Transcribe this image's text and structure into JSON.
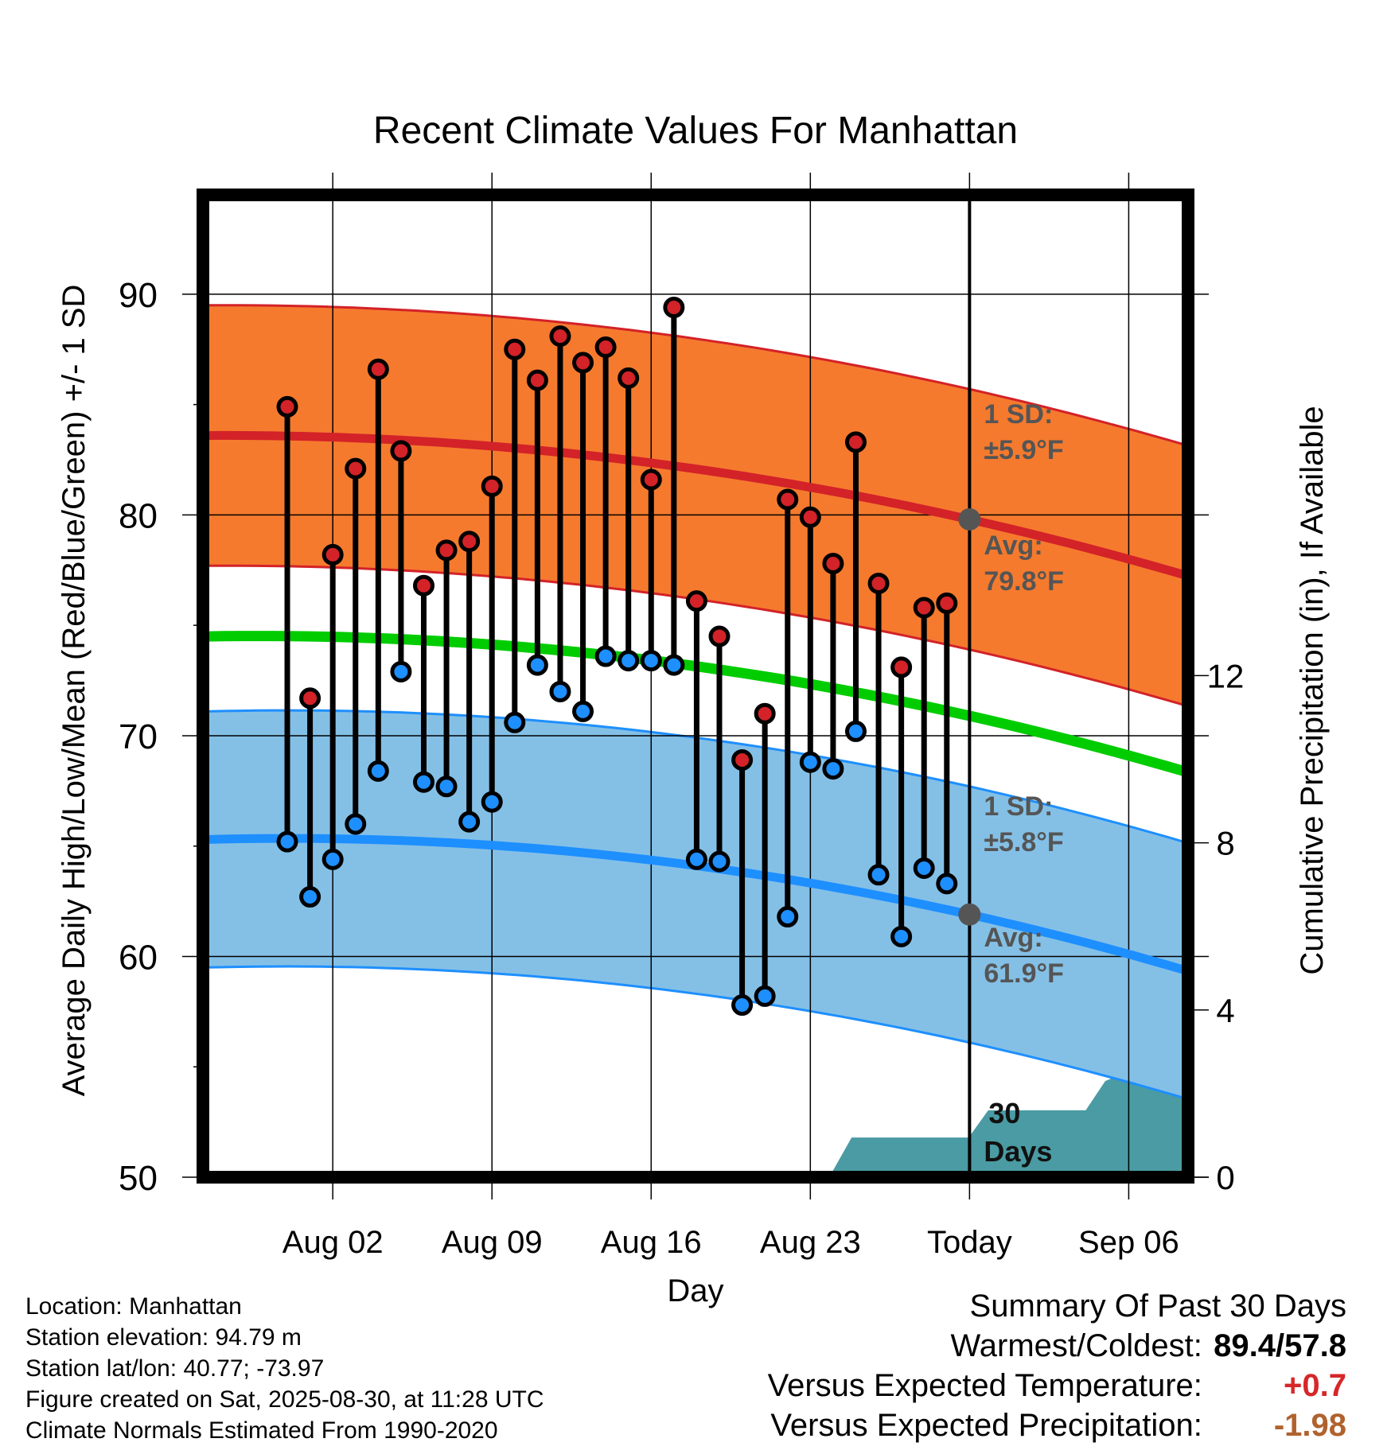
{
  "chart_data": {
    "type": "line",
    "title": "Recent Climate Values For Manhattan",
    "xlabel": "Day",
    "ylabel": "Average Daily High/Low/Mean (Red/Blue/Green) +/- 1 SD",
    "y2label": "Cumulative Precipitation (in), If Available",
    "ylim": [
      50,
      94.5
    ],
    "y2lim": [
      0,
      23.5
    ],
    "xlim_days": [
      -32.5,
      10.4
    ],
    "x_ticks": [
      {
        "label": "Aug 02",
        "day": -27
      },
      {
        "label": "Aug 09",
        "day": -20
      },
      {
        "label": "Aug 16",
        "day": -13
      },
      {
        "label": "Aug 23",
        "day": -6
      },
      {
        "label": "Today",
        "day": 1
      },
      {
        "label": "Sep 06",
        "day": 8
      }
    ],
    "y_ticks": [
      50,
      60,
      70,
      80,
      90
    ],
    "y2_ticks": [
      0,
      4,
      8,
      12
    ],
    "grid": true,
    "today_day": 1,
    "highs": [
      84.9,
      71.7,
      78.2,
      82.1,
      86.6,
      82.9,
      76.8,
      78.4,
      78.8,
      81.3,
      87.5,
      86.1,
      88.1,
      86.9,
      87.6,
      86.2,
      81.6,
      89.4,
      76.1,
      74.5,
      68.9,
      71.0,
      80.7,
      79.9,
      77.8,
      83.3,
      76.9,
      73.1,
      75.8,
      76.0
    ],
    "lows": [
      65.2,
      62.7,
      64.4,
      66.0,
      68.4,
      72.9,
      67.9,
      67.7,
      66.1,
      67.0,
      70.6,
      73.2,
      72.0,
      71.1,
      73.6,
      73.4,
      73.4,
      73.2,
      64.4,
      64.3,
      57.8,
      58.2,
      61.8,
      68.8,
      68.5,
      70.2,
      63.7,
      60.9,
      64.0,
      63.3
    ],
    "normal_high": {
      "start": 83.6,
      "today": 79.8,
      "end": 77.3
    },
    "normal_high_sd": 5.9,
    "normal_low": {
      "start": 65.3,
      "today": 61.9,
      "end": 59.4
    },
    "normal_low_sd": 5.8,
    "normal_mean": {
      "start": 74.5,
      "today": 70.9,
      "end": 68.4
    },
    "precip_cumulative": [
      0.0,
      0.09,
      0.09,
      0.09,
      0.09,
      0.09,
      0.09,
      0.09,
      0.09,
      0.09,
      0.09,
      0.09,
      0.09,
      0.09,
      0.09,
      0.09,
      0.09,
      0.09,
      0.09,
      0.09,
      0.12,
      0.12,
      0.12,
      0.12,
      0.12,
      0.12,
      0.12,
      0.12,
      0.12,
      0.12,
      0.12,
      0.12,
      0.12,
      0.95,
      0.95,
      0.95,
      0.95,
      0.95,
      0.95,
      0.95,
      1.6,
      1.6,
      1.6,
      1.6,
      1.6,
      1.6,
      2.3,
      2.5,
      2.5,
      2.5,
      2.5
    ],
    "precip_x_range": [
      -32.5,
      10.4
    ],
    "annotations": {
      "high_sd_line1": "1 SD:",
      "high_sd_line2": "±5.9°F",
      "high_avg_line1": "Avg:",
      "high_avg_line2": "79.8°F",
      "low_sd_line1": "1 SD:",
      "low_sd_line2": "±5.8°F",
      "low_avg_line1": "Avg:",
      "low_avg_line2": "61.9°F",
      "precip_line1": "30",
      "precip_line2": "Days"
    },
    "colors": {
      "high_band": "#f57a2e",
      "high_line": "#d32228",
      "low_band": "#84c0e6",
      "low_line": "#1e8fff",
      "mean_line": "#00cc00",
      "precip": "#4a9ba3",
      "high_marker": "#d32228",
      "low_marker": "#1e8fff",
      "annotation": "#555555"
    }
  },
  "info": {
    "location": "Location: Manhattan",
    "elevation": "Station elevation: 94.79 m",
    "latlon": "Station lat/lon: 40.77; -73.97",
    "created": "Figure created on Sat, 2025-08-30, at 11:28 UTC",
    "normals": "Climate Normals Estimated From 1990-2020"
  },
  "summary": {
    "title": "Summary Of Past 30 Days",
    "warm_cold_label": "Warmest/Coldest:",
    "warm_cold_value": "89.4/57.8",
    "temp_label": "Versus Expected Temperature:",
    "temp_value": "+0.7",
    "precip_label": "Versus Expected Precipitation:",
    "precip_value": "-1.98"
  }
}
